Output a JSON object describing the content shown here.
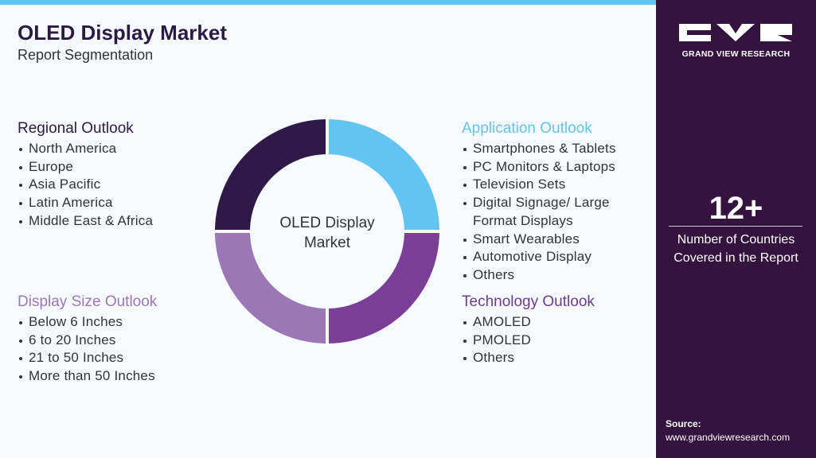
{
  "header": {
    "title": "OLED Display Market",
    "subtitle": "Report Segmentation"
  },
  "center_label": [
    "OLED Display",
    "Market"
  ],
  "segments": [
    {
      "title": "Regional Outlook",
      "items": [
        "North America",
        "Europe",
        "Asia Pacific",
        "Latin America",
        "Middle East & Africa"
      ]
    },
    {
      "title": "Application Outlook",
      "items": [
        "Smartphones & Tablets",
        "PC Monitors & Laptops",
        "Television Sets",
        "Digital Signage/ Large Format Displays",
        "Smart Wearables",
        "Automotive Display",
        "Others"
      ]
    },
    {
      "title": "Display Size Outlook",
      "items": [
        "Below 6 Inches",
        "6 to 20 Inches",
        "21 to 50 Inches",
        "More than 50 Inches"
      ]
    },
    {
      "title": "Technology Outlook",
      "items": [
        "AMOLED",
        "PMOLED",
        "Others"
      ]
    }
  ],
  "sidebar": {
    "brand": "GRAND VIEW RESEARCH",
    "stat": "12+",
    "stat_label": "Number of Countries Covered in the Report",
    "source_label": "Source:",
    "source_url": "www.grandviewresearch.com"
  }
}
